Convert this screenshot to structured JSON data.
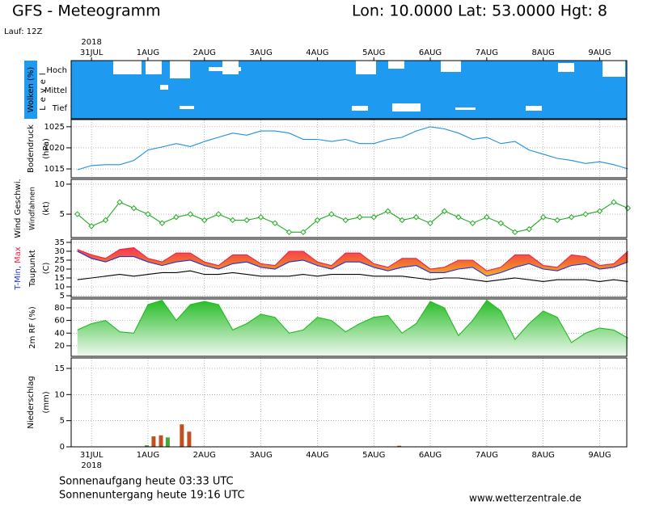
{
  "header": {
    "title": "GFS - Meteogramm",
    "location": "Lon: 10.0000 Lat: 53.0000 Hgt: 8",
    "run": "Lauf: 12Z"
  },
  "x_axis": {
    "year": "2018",
    "xlim": [
      -0.36,
      9.48
    ],
    "xticks": [
      {
        "value": 0,
        "label": "31JUL"
      },
      {
        "value": 1,
        "label": "1AUG"
      },
      {
        "value": 2,
        "label": "2AUG"
      },
      {
        "value": 3,
        "label": "3AUG"
      },
      {
        "value": 4,
        "label": "4AUG"
      },
      {
        "value": 5,
        "label": "5AUG"
      },
      {
        "value": 6,
        "label": "6AUG"
      },
      {
        "value": 7,
        "label": "7AUG"
      },
      {
        "value": 8,
        "label": "8AUG"
      },
      {
        "value": 9,
        "label": "9AUG"
      }
    ]
  },
  "chart_data": [
    {
      "type": "clouds",
      "ylabel": "Wolken (%)",
      "level_title": "Level",
      "levels": [
        "Hoch",
        "Mittel",
        "Tief"
      ],
      "color": "#1e9bf0"
    },
    {
      "type": "line",
      "ylabel": "Bodendruck",
      "yunit": "(hPa)",
      "ylim": [
        1012.9,
        1026.7
      ],
      "yticks": [
        1015,
        1020,
        1025
      ],
      "grid": true,
      "x": [
        -0.25,
        0,
        0.25,
        0.5,
        0.75,
        1,
        1.25,
        1.5,
        1.75,
        2,
        2.25,
        2.5,
        2.75,
        3,
        3.25,
        3.5,
        3.75,
        4,
        4.25,
        4.5,
        4.75,
        5,
        5.25,
        5.5,
        5.75,
        6,
        6.25,
        6.5,
        6.75,
        7,
        7.25,
        7.5,
        7.75,
        8,
        8.25,
        8.5,
        8.75,
        9,
        9.25,
        9.5
      ],
      "series": [
        {
          "color": "#1e8fe0",
          "values": [
            1014.8,
            1015.8,
            1016,
            1016,
            1017,
            1019.5,
            1020.2,
            1021,
            1020.3,
            1021.5,
            1022.5,
            1023.5,
            1023,
            1024,
            1024,
            1023.5,
            1022,
            1022,
            1021.5,
            1022,
            1021,
            1021,
            1022,
            1022.5,
            1024,
            1025,
            1024.5,
            1023.5,
            1022,
            1022.5,
            1021,
            1021.5,
            1019.5,
            1018.5,
            1017.5,
            1017,
            1016.3,
            1016.7,
            1016,
            1015
          ]
        }
      ]
    },
    {
      "type": "line",
      "barbs_label": "Windfahnen",
      "yunit": "(kt)",
      "ylim": [
        1.1,
        10.8
      ],
      "yticks": [
        5,
        10
      ],
      "grid": true,
      "markers": true,
      "x": [
        -0.25,
        0,
        0.25,
        0.5,
        0.75,
        1,
        1.25,
        1.5,
        1.75,
        2,
        2.25,
        2.5,
        2.75,
        3,
        3.25,
        3.5,
        3.75,
        4,
        4.25,
        4.5,
        4.75,
        5,
        5.25,
        5.5,
        5.75,
        6,
        6.25,
        6.5,
        6.75,
        7,
        7.25,
        7.5,
        7.75,
        8,
        8.25,
        8.5,
        8.75,
        9,
        9.25,
        9.5
      ],
      "series": [
        {
          "name": "Wind Geschwi.",
          "color": "#22aa22",
          "values": [
            5,
            3,
            4,
            7,
            6,
            5,
            3.5,
            4.5,
            5,
            4,
            5,
            4,
            4,
            4.5,
            3.5,
            2,
            2,
            4,
            5,
            4,
            4.5,
            4.5,
            5.5,
            4,
            4.5,
            3.5,
            5.5,
            4.5,
            3.5,
            4.5,
            3.5,
            2,
            2.5,
            4.5,
            4,
            4.5,
            5,
            5.5,
            7,
            6
          ]
        }
      ]
    },
    {
      "type": "band",
      "yunit": "(C)",
      "ylim": [
        4.1,
        36.8
      ],
      "yticks": [
        5,
        10,
        15,
        20,
        25,
        30,
        35
      ],
      "grid": true,
      "x": [
        -0.25,
        0,
        0.25,
        0.5,
        0.75,
        1,
        1.25,
        1.5,
        1.75,
        2,
        2.25,
        2.5,
        2.75,
        3,
        3.25,
        3.5,
        3.75,
        4,
        4.25,
        4.5,
        4.75,
        5,
        5.25,
        5.5,
        5.75,
        6,
        6.25,
        6.5,
        6.75,
        7,
        7.25,
        7.5,
        7.75,
        8,
        8.25,
        8.5,
        8.75,
        9,
        9.25,
        9.5
      ],
      "series": [
        {
          "name": "T-Min,",
          "color": "#2233cc",
          "values": [
            30,
            26,
            24,
            27,
            27,
            24,
            22,
            24,
            25,
            22,
            20,
            23,
            24,
            21,
            20,
            24,
            25,
            22,
            20,
            24,
            24,
            21,
            19,
            21,
            22,
            18,
            18,
            20,
            21,
            16,
            18,
            21,
            23,
            20,
            19,
            22,
            23,
            20,
            21,
            24
          ]
        },
        {
          "name": "Max",
          "color": "#ee2244",
          "values": [
            31,
            28,
            26,
            31,
            32,
            26,
            24,
            29,
            29,
            24,
            22,
            28,
            28,
            23,
            22,
            30,
            30,
            24,
            22,
            29,
            29,
            23,
            21,
            26,
            26,
            20,
            21,
            25,
            25,
            19,
            21,
            28,
            28,
            22,
            21,
            28,
            27,
            22,
            23,
            30
          ]
        },
        {
          "name": "Taupunkt",
          "color": "#000000",
          "values": [
            14,
            15,
            16,
            17,
            16,
            17,
            18,
            18,
            19,
            17,
            17,
            18,
            17,
            16,
            16,
            16,
            17,
            16,
            17,
            17,
            17,
            16,
            16,
            16,
            15,
            14,
            15,
            15,
            14,
            13,
            14,
            15,
            14,
            13,
            14,
            14,
            14,
            13,
            14,
            13
          ]
        }
      ]
    },
    {
      "type": "area",
      "ylim": [
        3.3,
        94
      ],
      "yticks": [
        20,
        40,
        60,
        80
      ],
      "grid": true,
      "x": [
        -0.25,
        0,
        0.25,
        0.5,
        0.75,
        1,
        1.25,
        1.5,
        1.75,
        2,
        2.25,
        2.5,
        2.75,
        3,
        3.25,
        3.5,
        3.75,
        4,
        4.25,
        4.5,
        4.75,
        5,
        5.25,
        5.5,
        5.75,
        6,
        6.25,
        6.5,
        6.75,
        7,
        7.25,
        7.5,
        7.75,
        8,
        8.25,
        8.5,
        8.75,
        9,
        9.25,
        9.5
      ],
      "series": [
        {
          "name": "2m RF (%)",
          "color": "#22bb22",
          "values": [
            45,
            55,
            60,
            42,
            40,
            85,
            92,
            60,
            85,
            90,
            85,
            45,
            55,
            70,
            65,
            40,
            45,
            65,
            60,
            42,
            55,
            65,
            68,
            40,
            55,
            90,
            80,
            36,
            60,
            92,
            75,
            30,
            55,
            75,
            65,
            25,
            40,
            48,
            45,
            32
          ]
        }
      ]
    },
    {
      "type": "bar",
      "ylabel": "Niederschlag",
      "yunit": "(mm)",
      "ylim": [
        0,
        17
      ],
      "yticks": [
        0,
        5,
        10,
        15
      ],
      "grid": true,
      "x": [
        0.98,
        1.1,
        1.23,
        1.35,
        1.6,
        1.73,
        5.45
      ],
      "values": [
        0.3,
        2,
        2.2,
        1.8,
        4.3,
        2.9,
        0.2
      ],
      "colors": [
        "#44aa33",
        "#c05020",
        "#c05020",
        "#44aa33",
        "#c05020",
        "#c05020",
        "#c05020"
      ]
    }
  ],
  "footer": {
    "sunrise": "Sonnenaufgang heute 03:33 UTC",
    "sunset": "Sonnenuntergang heute 19:16 UTC",
    "source": "www.wetterzentrale.de"
  }
}
